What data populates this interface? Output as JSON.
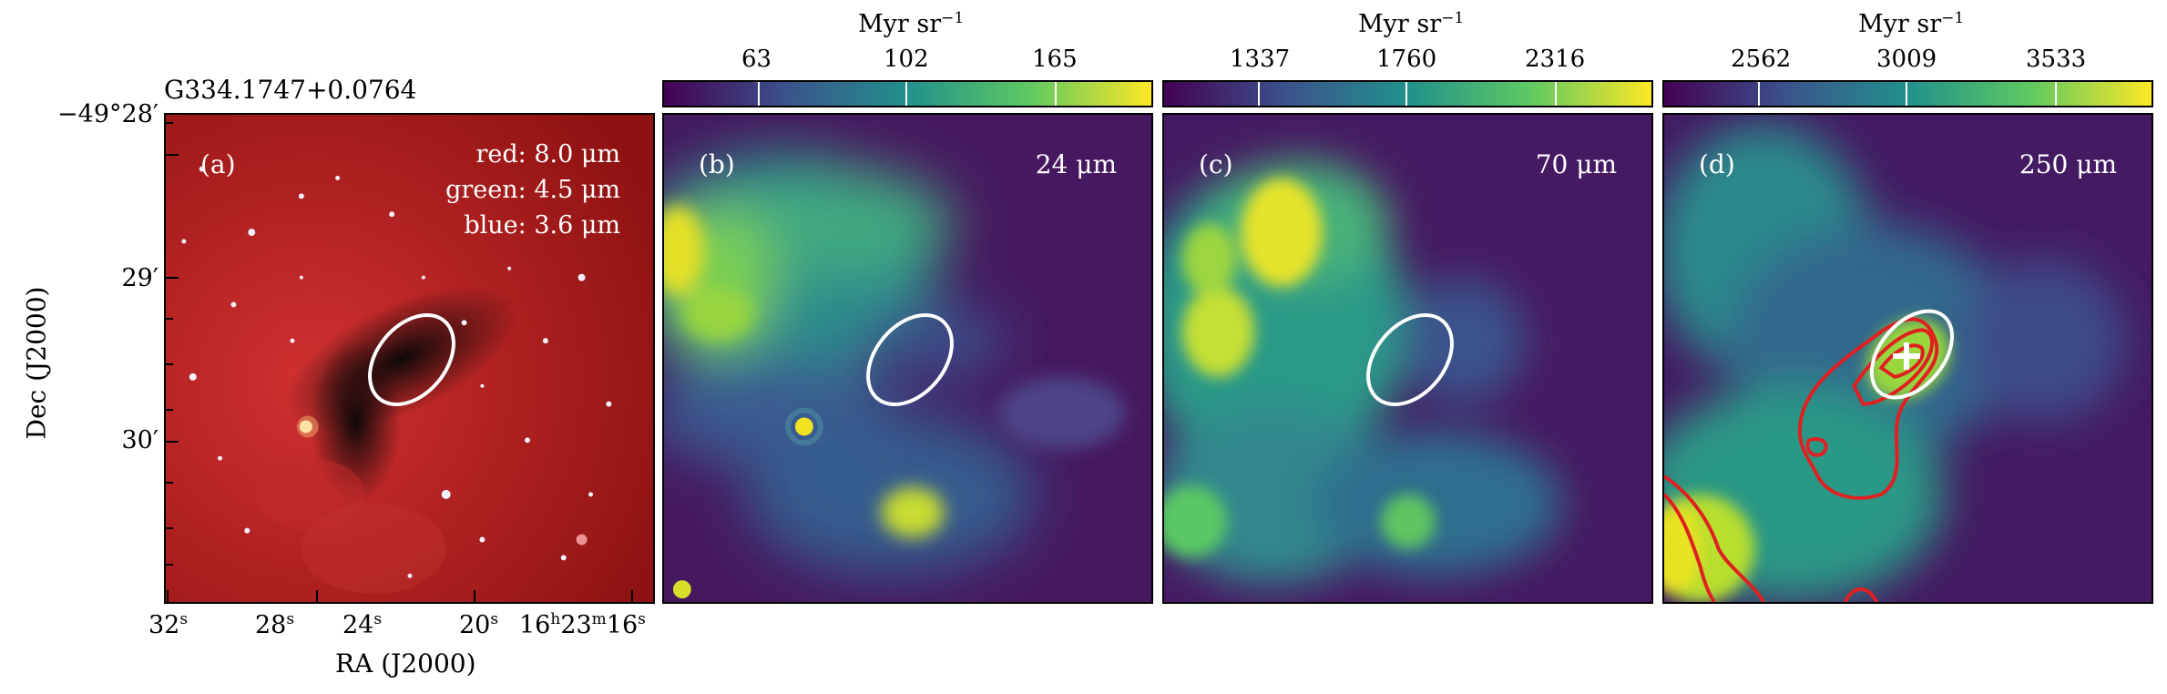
{
  "source_name": "G334.1747+0.0764",
  "colorbar_unit": "Myr sr",
  "colorbar_unit_exp": "−1",
  "colorbars": [
    {
      "id": "b",
      "ticks": [
        "63",
        "102",
        "165"
      ]
    },
    {
      "id": "c",
      "ticks": [
        "1337",
        "1760",
        "2316"
      ]
    },
    {
      "id": "d",
      "ticks": [
        "2562",
        "3009",
        "3533"
      ]
    }
  ],
  "panels": {
    "a": {
      "label": "(a)",
      "legend": [
        "red: 8.0 μm",
        "green: 4.5 μm",
        "blue: 3.6 μm"
      ]
    },
    "b": {
      "label": "(b)",
      "wavelength": "24 μm"
    },
    "c": {
      "label": "(c)",
      "wavelength": "70 μm"
    },
    "d": {
      "label": "(d)",
      "wavelength": "250 μm"
    }
  },
  "axes": {
    "xlabel": "RA (J2000)",
    "ylabel": "Dec (J2000)",
    "xticks": [
      "32s",
      "28s",
      "24s",
      "20s",
      "16h23m16s"
    ],
    "yticks": [
      "−49°28′",
      "29′",
      "30′"
    ]
  },
  "colors": {
    "rgb_background": "#b01c1c",
    "viridis_low": "#440154",
    "viridis_mid": "#21918c",
    "viridis_high": "#fde725",
    "contour": "#e02020",
    "ellipse": "#ffffff"
  }
}
